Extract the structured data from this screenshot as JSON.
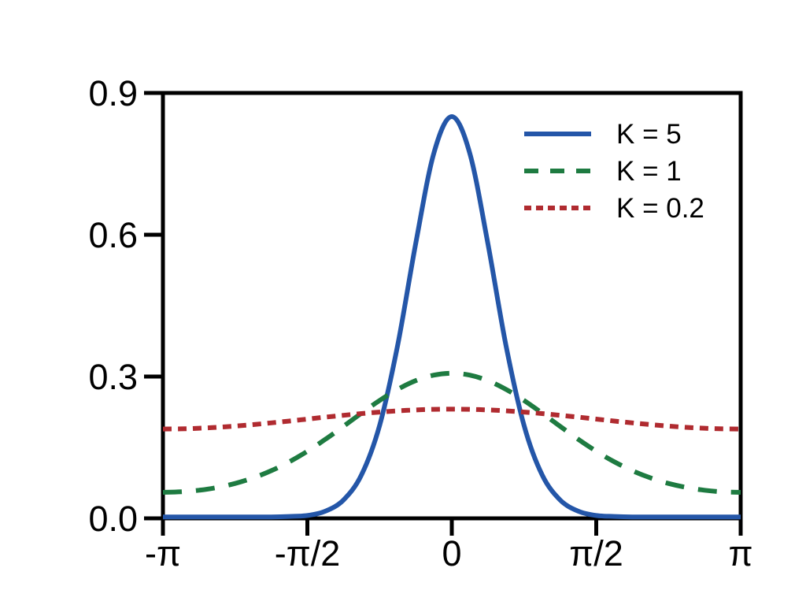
{
  "figure": {
    "background": "#ffffff",
    "text_color": "#000000",
    "frame_color": "#000000"
  },
  "chart_data": {
    "type": "line",
    "title": "",
    "xlabel": "",
    "ylabel": "",
    "grid": false,
    "legend_position": "upper right",
    "xlim_pi": [
      -1,
      1
    ],
    "ylim": [
      0,
      0.9
    ],
    "x_ticks_pi": [
      -1,
      -0.5,
      0,
      0.5,
      1
    ],
    "x_ticklabels": [
      "-π",
      "-π/2",
      "0",
      "π/2",
      "π"
    ],
    "y_ticks": [
      0.0,
      0.3,
      0.6,
      0.9
    ],
    "y_ticklabels": [
      "0.0",
      "0.3",
      "0.6",
      "0.9"
    ],
    "x_over_pi": [
      -1,
      -0.9375,
      -0.875,
      -0.8125,
      -0.75,
      -0.6875,
      -0.625,
      -0.5625,
      -0.5,
      -0.4375,
      -0.375,
      -0.3125,
      -0.25,
      -0.1875,
      -0.125,
      -0.0625,
      0,
      0.0625,
      0.125,
      0.1875,
      0.25,
      0.3125,
      0.375,
      0.4375,
      0.5,
      0.5625,
      0.625,
      0.6875,
      0.75,
      0.8125,
      0.875,
      0.9375,
      1
    ],
    "series": [
      {
        "name": "K = 5",
        "color": "#2456A8",
        "line_style": "solid",
        "values": [
          0.003,
          0.003,
          0.003,
          0.003,
          0.003,
          0.003,
          0.003,
          0.004,
          0.006,
          0.0152,
          0.0388,
          0.0921,
          0.1965,
          0.366,
          0.581,
          0.772,
          0.85,
          0.772,
          0.581,
          0.366,
          0.1965,
          0.0921,
          0.0388,
          0.0152,
          0.006,
          0.004,
          0.003,
          0.003,
          0.003,
          0.003,
          0.003,
          0.003,
          0.003
        ]
      },
      {
        "name": "K = 1",
        "color": "#1E7B41",
        "line_style": "dashed",
        "values": [
          0.055,
          0.0561,
          0.0595,
          0.0653,
          0.0739,
          0.0857,
          0.1009,
          0.1197,
          0.142,
          0.1673,
          0.1947,
          0.2227,
          0.2494,
          0.2729,
          0.2913,
          0.303,
          0.307,
          0.303,
          0.2913,
          0.2729,
          0.2494,
          0.2227,
          0.1947,
          0.1673,
          0.142,
          0.1197,
          0.1009,
          0.0857,
          0.0739,
          0.0653,
          0.0595,
          0.0561,
          0.055
        ]
      },
      {
        "name": "K = 0.2",
        "color": "#B02B30",
        "line_style": "dotted",
        "values": [
          0.189,
          0.1894,
          0.1906,
          0.1925,
          0.1952,
          0.1983,
          0.202,
          0.2059,
          0.21,
          0.2141,
          0.218,
          0.2217,
          0.2248,
          0.2275,
          0.2294,
          0.2306,
          0.231,
          0.2306,
          0.2294,
          0.2275,
          0.2248,
          0.2217,
          0.218,
          0.2141,
          0.21,
          0.2059,
          0.202,
          0.1983,
          0.1952,
          0.1925,
          0.1906,
          0.1894,
          0.189
        ]
      }
    ]
  }
}
